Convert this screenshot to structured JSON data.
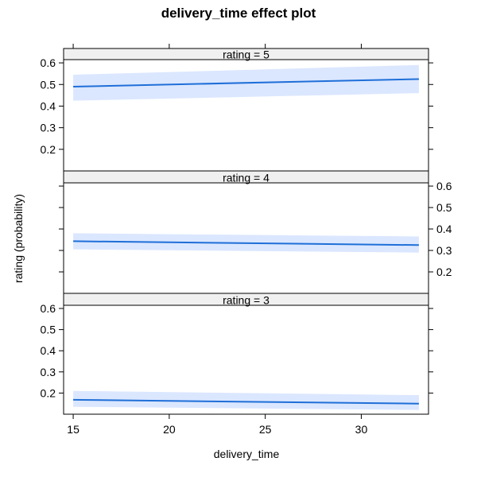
{
  "chart_data": {
    "type": "line",
    "title": "delivery_time effect plot",
    "xlabel": "delivery_time",
    "ylabel": "rating (probability)",
    "xlim": [
      14.5,
      33.5
    ],
    "ylim": [
      0.1,
      0.62
    ],
    "x_ticks": [
      15,
      20,
      25,
      30
    ],
    "y_ticks": [
      0.2,
      0.3,
      0.4,
      0.5,
      0.6
    ],
    "y_tick_labels": [
      "0.2",
      "0.3",
      "0.4",
      "0.5",
      "0.6"
    ],
    "x_tick_labels": [
      "15",
      "20",
      "25",
      "30"
    ],
    "line_color": "#1f6fd8",
    "band_color": "#dbe7ff",
    "strip_color": "#f0f0f0",
    "panels": [
      {
        "strip": "rating = 5",
        "y_axis_side": "left",
        "x": [
          15,
          33
        ],
        "fit": [
          0.49,
          0.525
        ],
        "lower": [
          0.425,
          0.46
        ],
        "upper": [
          0.545,
          0.59
        ]
      },
      {
        "strip": "rating = 4",
        "y_axis_side": "right",
        "x": [
          15,
          33
        ],
        "fit": [
          0.343,
          0.325
        ],
        "lower": [
          0.305,
          0.29
        ],
        "upper": [
          0.38,
          0.365
        ]
      },
      {
        "strip": "rating = 3",
        "y_axis_side": "left",
        "x": [
          15,
          33
        ],
        "fit": [
          0.168,
          0.15
        ],
        "lower": [
          0.135,
          0.12
        ],
        "upper": [
          0.21,
          0.19
        ]
      }
    ]
  }
}
